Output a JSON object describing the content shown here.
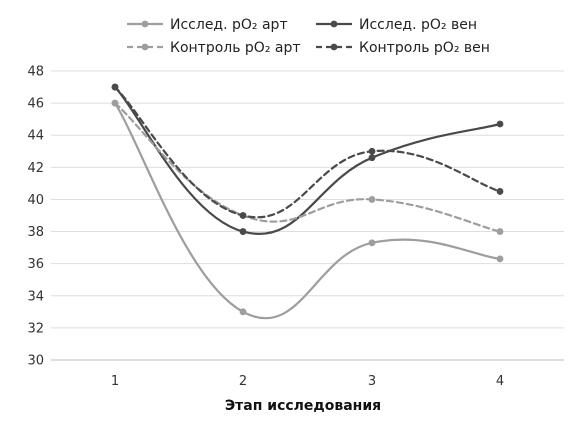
{
  "chart_data": {
    "type": "line",
    "title": "",
    "xlabel": "Этап исследования",
    "ylabel": "",
    "categories": [
      "1",
      "2",
      "3",
      "4"
    ],
    "ylim": [
      30,
      48
    ],
    "yticks": [
      "30",
      "32",
      "34",
      "36",
      "38",
      "40",
      "42",
      "44",
      "46",
      "48"
    ],
    "grid": true,
    "legend_position": "top",
    "series": [
      {
        "name": "Исслед. pO₂ арт",
        "values": [
          46,
          33,
          37.3,
          36.3
        ],
        "color": "#9e9e9e",
        "dashed": false
      },
      {
        "name": "Исслед. pO₂ вен",
        "values": [
          47,
          38,
          42.6,
          44.7
        ],
        "color": "#4a4a4a",
        "dashed": false
      },
      {
        "name": "Контроль pO₂ арт",
        "values": [
          46,
          39,
          40,
          38
        ],
        "color": "#9e9e9e",
        "dashed": true
      },
      {
        "name": "Контроль pO₂ вен",
        "values": [
          47,
          39,
          43,
          40.5
        ],
        "color": "#4a4a4a",
        "dashed": true
      }
    ]
  }
}
